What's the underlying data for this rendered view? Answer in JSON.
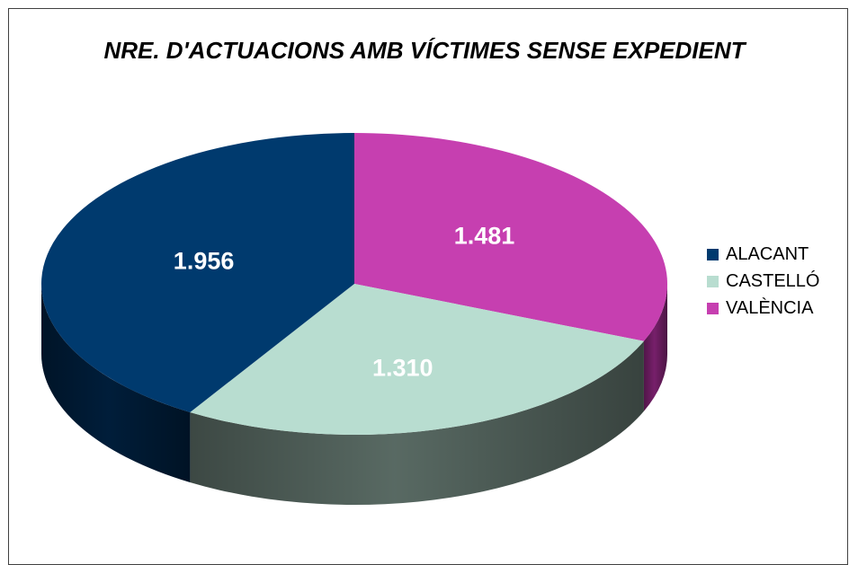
{
  "chart_data": {
    "type": "pie",
    "title": "NRE. D'ACTUACIONS AMB VÍCTIMES SENSE EXPEDIENT",
    "categories": [
      "ALACANT",
      "CASTELLÓ",
      "VALÈNCIA"
    ],
    "values": [
      1956,
      1310,
      1481
    ],
    "value_labels": [
      "1.956",
      "1.310",
      "1.481"
    ],
    "colors": [
      "#003a6e",
      "#b8ddd0",
      "#c63fb0"
    ],
    "side_colors": [
      "#001f3d",
      "#5d6f68",
      "#7d2170"
    ],
    "legend_position": "right",
    "style": "3d"
  }
}
